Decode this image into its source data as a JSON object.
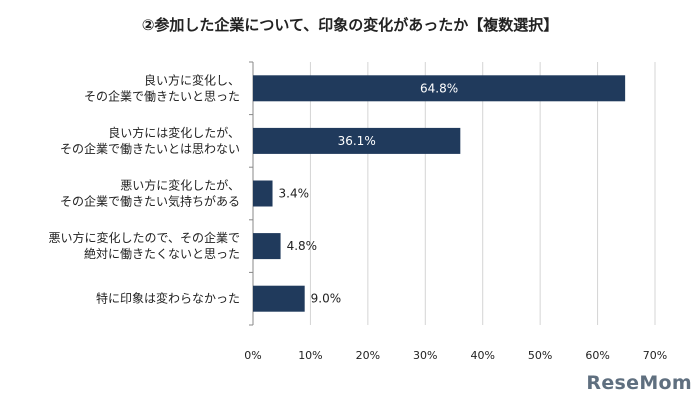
{
  "title": "②参加した企業について、印象の変化があったか【複数選択】",
  "logo": "ReseMom",
  "chart_data": {
    "type": "bar",
    "orientation": "horizontal",
    "title": "②参加した企業について、印象の変化があったか【複数選択】",
    "categories": [
      [
        "良い方に変化し、",
        "その企業で働きたいと思った"
      ],
      [
        "良い方には変化したが、",
        "その企業で働きたいとは思わない"
      ],
      [
        "悪い方に変化したが、",
        "その企業で働きたい気持ちがある"
      ],
      [
        "悪い方に変化したので、その企業で",
        "絶対に働きたくないと思った"
      ],
      [
        "特に印象は変わらなかった"
      ]
    ],
    "values": [
      64.8,
      36.1,
      3.4,
      4.8,
      9.0
    ],
    "value_labels": [
      "64.8%",
      "36.1%",
      "3.4%",
      "4.8%",
      "9.0%"
    ],
    "xlim": [
      0,
      70
    ],
    "ticks": [
      "0%",
      "10%",
      "20%",
      "30%",
      "40%",
      "50%",
      "60%",
      "70%"
    ],
    "bar_color": "#203a5c",
    "grid": true
  }
}
